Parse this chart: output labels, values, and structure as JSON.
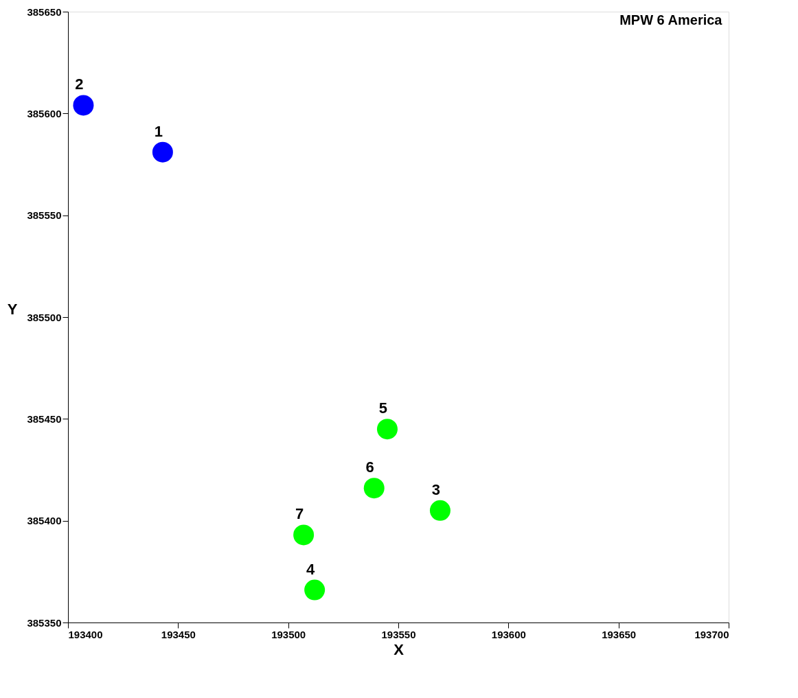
{
  "chart_data": {
    "type": "scatter",
    "title": "MPW 6 America",
    "xlabel": "X",
    "ylabel": "Y",
    "xlim": [
      193400,
      193700
    ],
    "xticks": [
      193400,
      193450,
      193500,
      193550,
      193600,
      193650,
      193700
    ],
    "ylim": [
      385350,
      385650
    ],
    "yticks": [
      385350,
      385400,
      385450,
      385500,
      385550,
      385600,
      385650
    ],
    "grid": false,
    "legend": false,
    "marker": "circle",
    "series": [
      {
        "color": "#0000ff",
        "x": [
          193443,
          193407
        ],
        "values": [
          385581,
          385604
        ]
      },
      {
        "color": "#00ff00",
        "x": [
          193569,
          193512,
          193545,
          193539,
          193507
        ],
        "values": [
          385405,
          385366,
          385445,
          385416,
          385393
        ]
      }
    ],
    "annotations": [
      {
        "text": "1",
        "x": 193443,
        "y": 385581
      },
      {
        "text": "2",
        "x": 193407,
        "y": 385604
      },
      {
        "text": "3",
        "x": 193569,
        "y": 385405
      },
      {
        "text": "4",
        "x": 193512,
        "y": 385366
      },
      {
        "text": "5",
        "x": 193545,
        "y": 385445
      },
      {
        "text": "6",
        "x": 193539,
        "y": 385416
      },
      {
        "text": "7",
        "x": 193507,
        "y": 385393
      }
    ]
  }
}
